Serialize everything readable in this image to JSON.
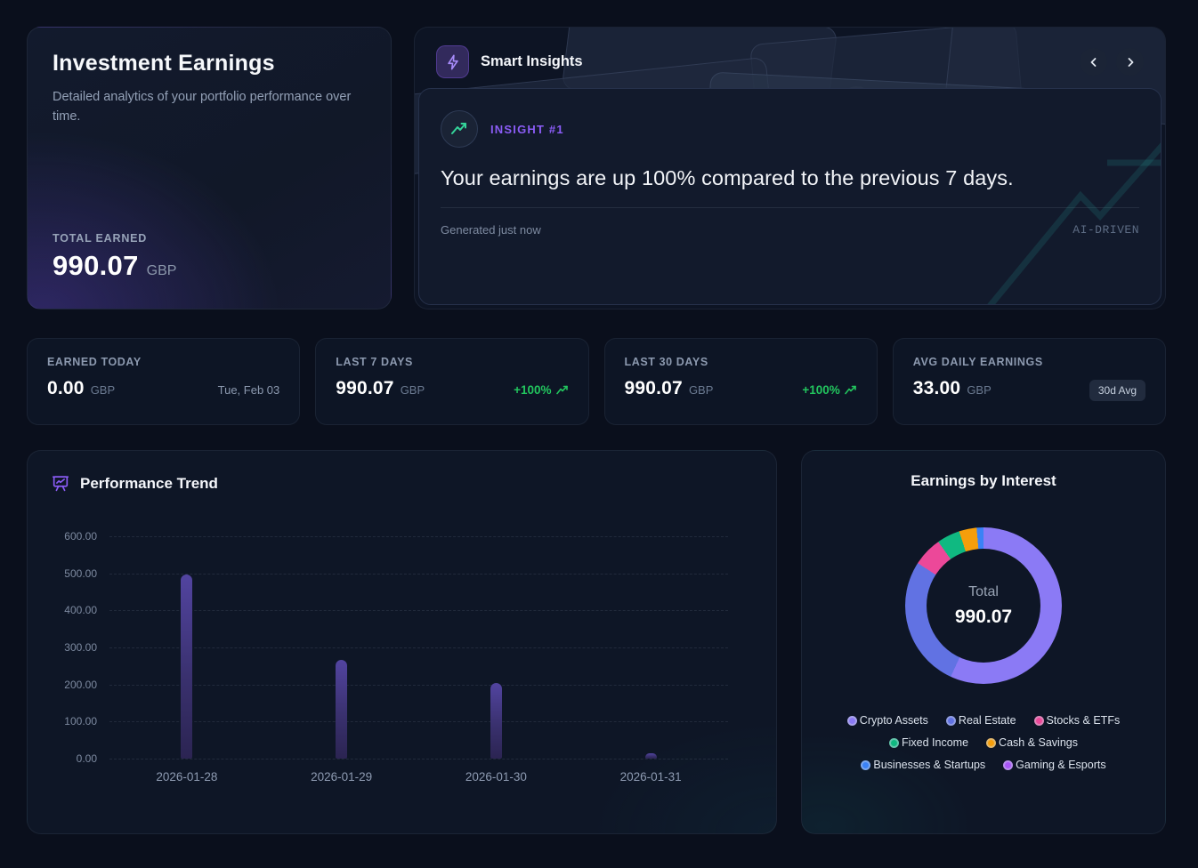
{
  "hero": {
    "title": "Investment Earnings",
    "subtitle": "Detailed analytics of your portfolio performance over time.",
    "total_label": "TOTAL EARNED",
    "total_value": "990.07",
    "currency": "GBP"
  },
  "insights": {
    "title": "Smart Insights",
    "badge_label": "INSIGHT #1",
    "message": "Your earnings are up 100% compared to the previous 7 days.",
    "generated": "Generated just now",
    "ai_tag": "AI-DRIVEN"
  },
  "stats": [
    {
      "label": "EARNED TODAY",
      "value": "0.00",
      "currency": "GBP",
      "meta": "Tue, Feb 03"
    },
    {
      "label": "LAST 7 DAYS",
      "value": "990.07",
      "currency": "GBP",
      "meta": "+100%"
    },
    {
      "label": "LAST 30 DAYS",
      "value": "990.07",
      "currency": "GBP",
      "meta": "+100%"
    },
    {
      "label": "AVG DAILY EARNINGS",
      "value": "33.00",
      "currency": "GBP",
      "meta": "30d Avg"
    }
  ],
  "colors": {
    "accent_purple": "#8b5cf6",
    "positive_green": "#22c55e",
    "bar_purple": "#473b85",
    "insight_green": "#34d399"
  },
  "chart_data": [
    {
      "type": "bar",
      "title": "Performance Trend",
      "categories": [
        "2026-01-28",
        "2026-01-29",
        "2026-01-30",
        "2026-01-31"
      ],
      "values": [
        498,
        266,
        204,
        14
      ],
      "ylim": [
        0,
        600
      ],
      "yticks": [
        "600.00",
        "500.00",
        "400.00",
        "300.00",
        "200.00",
        "100.00",
        "0.00"
      ],
      "grid": "dashed-horizontal",
      "legend": "none"
    },
    {
      "type": "donut",
      "title": "Earnings by Interest",
      "center_label": "Total",
      "center_value": "990.07",
      "total": 990.07,
      "segments": [
        {
          "label": "Crypto Assets",
          "value": 563.07,
          "color": "#8b7af5"
        },
        {
          "label": "Real Estate",
          "value": 270,
          "color": "#6172e3"
        },
        {
          "label": "Stocks & ETFs",
          "value": 60,
          "color": "#ec4899"
        },
        {
          "label": "Fixed Income",
          "value": 47,
          "color": "#10b981"
        },
        {
          "label": "Cash & Savings",
          "value": 36,
          "color": "#f59e0b"
        },
        {
          "label": "Businesses & Startups",
          "value": 14,
          "color": "#3b82f6"
        },
        {
          "label": "Gaming & Esports",
          "value": 0,
          "color": "#a855f7"
        }
      ],
      "legend": "bottom"
    }
  ]
}
